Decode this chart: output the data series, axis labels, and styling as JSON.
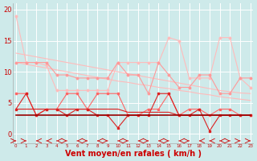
{
  "x": [
    0,
    1,
    2,
    3,
    4,
    5,
    6,
    7,
    8,
    9,
    10,
    11,
    12,
    13,
    14,
    15,
    16,
    17,
    18,
    19,
    20,
    21,
    22,
    23
  ],
  "background_color": "#ceeaea",
  "grid_color": "#ffffff",
  "xlabel": "Vent moyen/en rafales ( km/h )",
  "xlabel_color": "#cc0000",
  "xlabel_fontsize": 7,
  "ytick_fontsize": 6,
  "xtick_fontsize": 4,
  "yticks": [
    0,
    5,
    10,
    15,
    20
  ],
  "ylim": [
    -1.5,
    21
  ],
  "xlim": [
    -0.3,
    23.3
  ],
  "c1": "#ffbbbb",
  "c2": "#ff9999",
  "c3": "#ff6666",
  "c4": "#dd2222",
  "c5": "#990000",
  "arrow_color": "#cc0000",
  "series": {
    "upper_jagged": [
      19.0,
      11.5,
      11.5,
      11.0,
      7.0,
      7.0,
      7.0,
      7.0,
      7.0,
      7.0,
      11.5,
      11.5,
      11.5,
      11.5,
      11.5,
      15.5,
      15.0,
      9.0,
      9.0,
      9.0,
      15.5,
      15.5,
      9.0,
      7.5
    ],
    "upper_diag1": [
      13.0,
      12.7,
      12.4,
      12.1,
      11.8,
      11.5,
      11.2,
      10.9,
      10.6,
      10.3,
      10.0,
      9.7,
      9.4,
      9.1,
      8.8,
      8.5,
      8.2,
      7.9,
      7.6,
      7.3,
      7.0,
      6.8,
      6.6,
      6.5
    ],
    "upper_diag2": [
      11.5,
      11.2,
      10.9,
      10.6,
      10.3,
      10.0,
      9.7,
      9.4,
      9.1,
      8.8,
      8.5,
      8.3,
      8.0,
      7.8,
      7.5,
      7.3,
      7.0,
      6.8,
      6.5,
      6.3,
      6.0,
      5.8,
      5.6,
      5.4
    ],
    "mid_jagged": [
      11.5,
      11.5,
      11.5,
      11.5,
      9.5,
      9.5,
      9.0,
      9.0,
      9.0,
      9.0,
      11.5,
      9.5,
      9.5,
      6.5,
      11.5,
      9.5,
      7.5,
      7.5,
      9.5,
      9.5,
      6.5,
      6.5,
      9.0,
      9.0
    ],
    "lower_jagged": [
      6.5,
      6.5,
      3.0,
      4.0,
      4.0,
      6.5,
      6.5,
      4.0,
      6.5,
      6.5,
      6.5,
      3.0,
      3.0,
      4.0,
      4.0,
      6.5,
      3.0,
      4.0,
      4.0,
      3.0,
      4.0,
      4.0,
      3.0,
      3.0
    ],
    "lower_flat1": [
      4.0,
      4.0,
      4.0,
      4.0,
      4.0,
      4.0,
      4.0,
      4.0,
      4.0,
      4.0,
      4.0,
      3.5,
      3.5,
      3.5,
      3.5,
      3.5,
      3.0,
      3.0,
      3.0,
      3.0,
      3.0,
      3.0,
      3.0,
      3.0
    ],
    "lower_jagged2": [
      4.0,
      6.5,
      3.0,
      4.0,
      4.0,
      3.0,
      4.0,
      4.0,
      3.0,
      3.0,
      1.0,
      3.0,
      3.0,
      3.0,
      6.5,
      6.5,
      3.0,
      3.0,
      4.0,
      0.5,
      3.0,
      3.0,
      3.0,
      3.0
    ],
    "bottom_flat": [
      3.0,
      3.0,
      3.0,
      3.0,
      3.0,
      3.0,
      3.0,
      3.0,
      3.0,
      3.0,
      3.0,
      3.0,
      3.0,
      3.0,
      3.0,
      3.0,
      3.0,
      3.0,
      3.0,
      3.0,
      3.0,
      3.0,
      3.0,
      3.0
    ]
  },
  "arrow_dirs": [
    1,
    1,
    -1,
    -1,
    -1,
    1,
    -1,
    1,
    -1,
    1,
    -1,
    1,
    -1,
    1,
    -1,
    1,
    -1,
    1,
    -1,
    -1,
    -1,
    1,
    1,
    1
  ]
}
